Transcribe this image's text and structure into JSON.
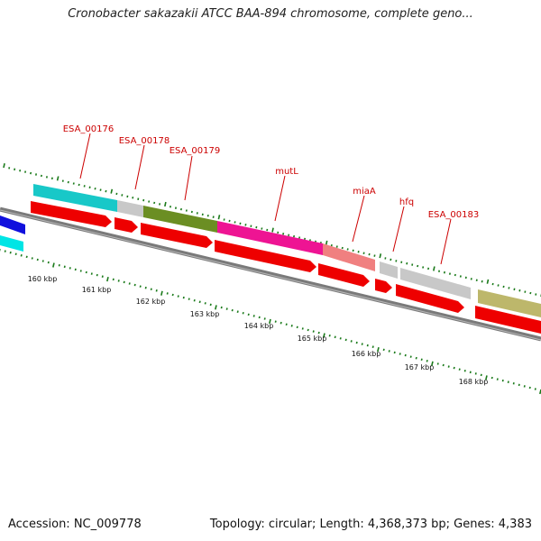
{
  "title": "Cronobacter sakazakii ATCC BAA-894 chromosome, complete geno...",
  "footer": {
    "accession": "Accession: NC_009778",
    "topology": "Topology: circular; Length: 4,368,373 bp; Genes: 4,383"
  },
  "colors": {
    "gene_label": "#cc0000",
    "cds_red": "#ee0000",
    "backbone": "#7a7a7a",
    "tick_green": "#1a7a1a",
    "cyan": "#18c8c8",
    "grey": "#c8c8c8",
    "olive": "#6b8e23",
    "magenta": "#ee1493",
    "salmon": "#f08080",
    "khaki": "#bdb76b",
    "blue": "#1010dd",
    "aqua": "#00e5e5"
  },
  "scale_labels": [
    "160 kbp",
    "161 kbp",
    "162 kbp",
    "163 kbp",
    "164 kbp",
    "165 kbp",
    "166 kbp",
    "167 kbp",
    "168 kbp"
  ],
  "gene_labels": [
    "ESA_00176",
    "ESA_00178",
    "ESA_00179",
    "mutL",
    "miaA",
    "hfq",
    "ESA_00183"
  ]
}
